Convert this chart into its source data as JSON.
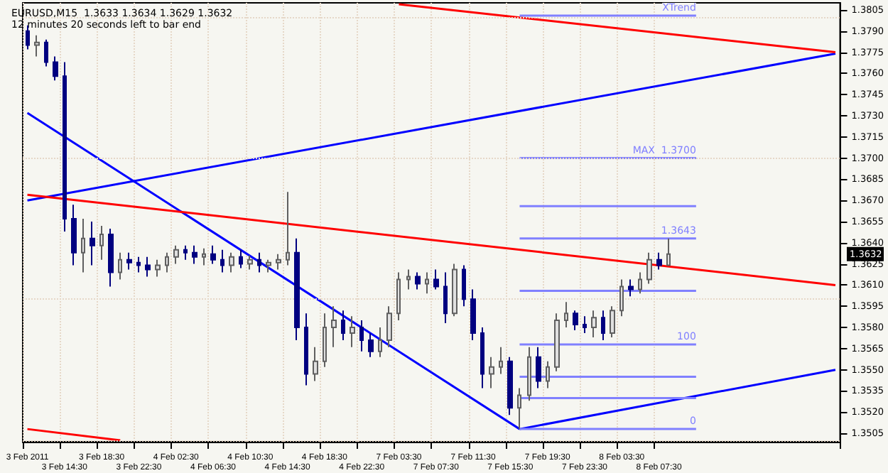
{
  "chart_data": {
    "type": "candlestick",
    "title": "EURUSD,M15  1.3633 1.3634 1.3629 1.3632",
    "subtitle": "12 minutes 20 seconds left to bar end",
    "categories": [
      "3 Feb 2011",
      null,
      null,
      null,
      "3 Feb 14:30",
      null,
      null,
      null,
      "3 Feb 18:30",
      null,
      null,
      null,
      "3 Feb 22:30",
      null,
      null,
      null,
      "4 Feb 02:30",
      null,
      null,
      null,
      "4 Feb 06:30",
      null,
      null,
      null,
      "4 Feb 10:30",
      null,
      null,
      null,
      "4 Feb 14:30",
      null,
      null,
      null,
      "4 Feb 18:30",
      null,
      null,
      null,
      "4 Feb 22:30",
      null,
      null,
      null,
      "7 Feb 03:30",
      null,
      null,
      null,
      "7 Feb 07:30",
      null,
      null,
      null,
      "7 Feb 11:30",
      null,
      null,
      null,
      "7 Feb 15:30",
      null,
      null,
      null,
      "7 Feb 19:30",
      null,
      null,
      null,
      "7 Feb 23:30",
      null,
      null,
      null,
      "8 Feb 03:30",
      null,
      null,
      null,
      "8 Feb 07:30",
      null,
      null,
      null,
      null,
      null,
      null,
      null,
      null,
      null,
      null,
      null,
      null,
      null,
      null,
      null,
      null,
      null,
      null,
      null
    ],
    "ohlc": [
      [
        1.379,
        1.3794,
        1.3777,
        1.378
      ],
      [
        1.378,
        1.3787,
        1.3772,
        1.3782
      ],
      [
        1.3782,
        1.3784,
        1.3765,
        1.3768
      ],
      [
        1.3768,
        1.3772,
        1.3755,
        1.3758
      ],
      [
        1.3758,
        1.3768,
        1.3648,
        1.3657
      ],
      [
        1.3657,
        1.3667,
        1.3624,
        1.3633
      ],
      [
        1.3633,
        1.3657,
        1.3619,
        1.3643
      ],
      [
        1.3643,
        1.3655,
        1.3624,
        1.3638
      ],
      [
        1.3638,
        1.3652,
        1.3628,
        1.3646
      ],
      [
        1.3646,
        1.365,
        1.3609,
        1.3619
      ],
      [
        1.3619,
        1.3633,
        1.3614,
        1.3628
      ],
      [
        1.3628,
        1.3633,
        1.3621,
        1.3626
      ],
      [
        1.3626,
        1.363,
        1.3619,
        1.3624
      ],
      [
        1.3624,
        1.363,
        1.3616,
        1.3621
      ],
      [
        1.3621,
        1.3628,
        1.3616,
        1.3624
      ],
      [
        1.3624,
        1.3633,
        1.3619,
        1.363
      ],
      [
        1.363,
        1.3638,
        1.3625,
        1.3635
      ],
      [
        1.3635,
        1.3638,
        1.3628,
        1.3633
      ],
      [
        1.3633,
        1.3638,
        1.3625,
        1.363
      ],
      [
        1.363,
        1.3636,
        1.3624,
        1.3632
      ],
      [
        1.3632,
        1.3638,
        1.3625,
        1.3628
      ],
      [
        1.3628,
        1.3635,
        1.3619,
        1.3624
      ],
      [
        1.3624,
        1.3633,
        1.3619,
        1.363
      ],
      [
        1.363,
        1.3635,
        1.3622,
        1.3625
      ],
      [
        1.3625,
        1.3631,
        1.3621,
        1.3628
      ],
      [
        1.3628,
        1.3633,
        1.3619,
        1.3624
      ],
      [
        1.3624,
        1.3628,
        1.3619,
        1.3626
      ],
      [
        1.3626,
        1.3632,
        1.3621,
        1.3628
      ],
      [
        1.3628,
        1.3676,
        1.3624,
        1.3633
      ],
      [
        1.3633,
        1.3643,
        1.3571,
        1.358
      ],
      [
        1.358,
        1.359,
        1.3539,
        1.3547
      ],
      [
        1.3547,
        1.3566,
        1.3542,
        1.3556
      ],
      [
        1.3556,
        1.359,
        1.3552,
        1.358
      ],
      [
        1.358,
        1.3595,
        1.3566,
        1.3585
      ],
      [
        1.3585,
        1.3592,
        1.3571,
        1.3576
      ],
      [
        1.3576,
        1.3588,
        1.3566,
        1.358
      ],
      [
        1.358,
        1.3585,
        1.3563,
        1.3571
      ],
      [
        1.3571,
        1.3576,
        1.3559,
        1.3563
      ],
      [
        1.3563,
        1.358,
        1.3559,
        1.3571
      ],
      [
        1.3571,
        1.3595,
        1.3566,
        1.359
      ],
      [
        1.359,
        1.3619,
        1.3585,
        1.3614
      ],
      [
        1.3614,
        1.3621,
        1.3607,
        1.3616
      ],
      [
        1.3616,
        1.3619,
        1.3607,
        1.3611
      ],
      [
        1.3611,
        1.3619,
        1.3604,
        1.3614
      ],
      [
        1.3614,
        1.3621,
        1.3607,
        1.3609
      ],
      [
        1.3609,
        1.3619,
        1.3583,
        1.359
      ],
      [
        1.359,
        1.3625,
        1.3588,
        1.3621
      ],
      [
        1.3621,
        1.3624,
        1.3595,
        1.36
      ],
      [
        1.36,
        1.3607,
        1.3571,
        1.3576
      ],
      [
        1.3576,
        1.358,
        1.3537,
        1.3547
      ],
      [
        1.3547,
        1.3559,
        1.3537,
        1.3552
      ],
      [
        1.3552,
        1.3566,
        1.3547,
        1.3556
      ],
      [
        1.3556,
        1.3559,
        1.3518,
        1.3523
      ],
      [
        1.3523,
        1.3537,
        1.3508,
        1.3532
      ],
      [
        1.3532,
        1.3566,
        1.3528,
        1.3559
      ],
      [
        1.3559,
        1.3566,
        1.3537,
        1.3542
      ],
      [
        1.3542,
        1.3556,
        1.3537,
        1.3552
      ],
      [
        1.3552,
        1.359,
        1.3549,
        1.3585
      ],
      [
        1.3585,
        1.3598,
        1.358,
        1.359
      ],
      [
        1.359,
        1.3592,
        1.3578,
        1.3582
      ],
      [
        1.3582,
        1.3588,
        1.3576,
        1.358
      ],
      [
        1.358,
        1.3592,
        1.3573,
        1.3587
      ],
      [
        1.3587,
        1.3592,
        1.3571,
        1.3576
      ],
      [
        1.3576,
        1.3595,
        1.3573,
        1.3592
      ],
      [
        1.3592,
        1.3614,
        1.3588,
        1.3609
      ],
      [
        1.3609,
        1.3614,
        1.3602,
        1.3607
      ],
      [
        1.3607,
        1.3619,
        1.3604,
        1.3614
      ],
      [
        1.3614,
        1.3633,
        1.3611,
        1.3628
      ],
      [
        1.3628,
        1.3633,
        1.3621,
        1.3624
      ],
      [
        1.3624,
        1.3643,
        1.3624,
        1.3632
      ],
      null,
      null,
      null,
      null,
      null,
      null,
      null,
      null,
      null,
      null,
      null,
      null,
      null,
      null,
      null,
      null,
      null,
      null
    ],
    "series": [
      {
        "type": "line",
        "color": "#0000ff",
        "values": [
          1.3732,
          null,
          null,
          null,
          null,
          null,
          null,
          null,
          null,
          null,
          null,
          null,
          null,
          null,
          null,
          null,
          null,
          null,
          null,
          null,
          null,
          null,
          null,
          null,
          null,
          null,
          null,
          null,
          null,
          null,
          null,
          null,
          null,
          null,
          null,
          null,
          null,
          null,
          null,
          null,
          null,
          null,
          null,
          null,
          null,
          null,
          null,
          null,
          null,
          null,
          null,
          null,
          null,
          1.3508,
          null,
          null,
          null,
          null,
          null,
          null,
          null,
          null,
          null,
          null,
          null,
          null,
          null,
          null,
          null,
          null,
          null,
          null,
          null,
          null,
          null,
          null,
          null,
          null,
          null,
          null,
          null,
          null,
          null,
          null,
          null,
          null,
          null,
          null
        ]
      },
      {
        "type": "line",
        "color": "#0000ff",
        "values": [
          null,
          null,
          null,
          null,
          null,
          null,
          null,
          null,
          null,
          null,
          null,
          null,
          null,
          null,
          null,
          null,
          null,
          null,
          null,
          null,
          null,
          null,
          null,
          null,
          null,
          null,
          null,
          null,
          null,
          null,
          null,
          null,
          null,
          null,
          null,
          null,
          null,
          null,
          null,
          null,
          null,
          null,
          null,
          null,
          null,
          null,
          null,
          null,
          null,
          null,
          null,
          null,
          null,
          1.3508,
          null,
          null,
          null,
          null,
          null,
          null,
          null,
          null,
          null,
          null,
          null,
          null,
          null,
          null,
          null,
          null,
          null,
          null,
          null,
          null,
          null,
          null,
          null,
          null,
          null,
          null,
          null,
          null,
          null,
          null,
          null,
          null,
          null,
          1.355
        ]
      },
      {
        "type": "line",
        "color": "#0000ff",
        "values": [
          1.367,
          null,
          null,
          null,
          null,
          null,
          null,
          null,
          null,
          null,
          null,
          null,
          null,
          null,
          null,
          null,
          null,
          null,
          null,
          null,
          null,
          null,
          null,
          null,
          null,
          null,
          null,
          null,
          null,
          null,
          null,
          null,
          null,
          null,
          null,
          null,
          null,
          null,
          null,
          null,
          null,
          null,
          null,
          null,
          null,
          null,
          null,
          null,
          null,
          null,
          null,
          null,
          null,
          null,
          null,
          null,
          null,
          null,
          null,
          null,
          null,
          null,
          null,
          null,
          null,
          null,
          null,
          null,
          null,
          null,
          null,
          null,
          null,
          null,
          null,
          null,
          null,
          null,
          null,
          null,
          null,
          null,
          null,
          null,
          null,
          null,
          null,
          1.3774
        ]
      },
      {
        "type": "line",
        "color": "#ff0000",
        "values": [
          1.3674,
          null,
          null,
          null,
          null,
          null,
          null,
          null,
          null,
          null,
          null,
          null,
          null,
          null,
          null,
          null,
          null,
          null,
          null,
          null,
          null,
          null,
          null,
          null,
          null,
          null,
          null,
          null,
          null,
          null,
          null,
          null,
          null,
          null,
          null,
          null,
          null,
          null,
          null,
          null,
          null,
          null,
          null,
          null,
          null,
          null,
          null,
          null,
          null,
          null,
          null,
          null,
          null,
          null,
          null,
          null,
          null,
          null,
          null,
          null,
          null,
          null,
          null,
          null,
          null,
          null,
          null,
          null,
          null,
          null,
          null,
          null,
          null,
          null,
          null,
          null,
          null,
          null,
          null,
          null,
          null,
          null,
          null,
          null,
          null,
          null,
          null,
          1.361
        ]
      },
      {
        "type": "line",
        "color": "#ff0000",
        "values": [
          null,
          null,
          null,
          null,
          null,
          null,
          null,
          null,
          null,
          null,
          null,
          null,
          null,
          null,
          null,
          null,
          null,
          null,
          null,
          null,
          null,
          null,
          null,
          null,
          null,
          null,
          null,
          null,
          null,
          null,
          null,
          null,
          null,
          null,
          null,
          null,
          null,
          null,
          null,
          null,
          1.3809,
          null,
          null,
          null,
          null,
          null,
          null,
          null,
          null,
          null,
          null,
          null,
          null,
          null,
          null,
          null,
          null,
          null,
          null,
          null,
          null,
          null,
          null,
          null,
          null,
          null,
          null,
          null,
          null,
          null,
          null,
          null,
          null,
          null,
          null,
          null,
          null,
          null,
          null,
          null,
          null,
          null,
          null,
          null,
          null,
          null,
          null,
          1.3775
        ]
      },
      {
        "type": "line",
        "color": "#ff0000",
        "values": [
          1.3508,
          null,
          null,
          null,
          null,
          null,
          null,
          null,
          null,
          null,
          1.35,
          null,
          null,
          null,
          null,
          null,
          null,
          null,
          null,
          null,
          null,
          null,
          null,
          null,
          null,
          null,
          null,
          null,
          null,
          null,
          null,
          null,
          null,
          null,
          null,
          null,
          null,
          null,
          null,
          null,
          null,
          null,
          null,
          null,
          null,
          null,
          null,
          null,
          null,
          null,
          null,
          null,
          null,
          null,
          null,
          null,
          null,
          null,
          null,
          null,
          null,
          null,
          null,
          null,
          null,
          null,
          null,
          null,
          null,
          null,
          null,
          null,
          null,
          null,
          null,
          null,
          null,
          null,
          null,
          null,
          null,
          null,
          null,
          null,
          null,
          null,
          null,
          null
        ]
      },
      {
        "type": "line",
        "name": "XTrend",
        "color": "#8080ff",
        "values": [
          null,
          null,
          null,
          null,
          null,
          null,
          null,
          null,
          null,
          null,
          null,
          null,
          null,
          null,
          null,
          null,
          null,
          null,
          null,
          null,
          null,
          null,
          null,
          null,
          null,
          null,
          null,
          null,
          null,
          null,
          null,
          null,
          null,
          null,
          null,
          null,
          null,
          null,
          null,
          null,
          null,
          null,
          null,
          null,
          null,
          null,
          null,
          null,
          null,
          null,
          null,
          null,
          null,
          1.3801,
          null,
          null,
          null,
          null,
          null,
          null,
          null,
          null,
          null,
          null,
          null,
          null,
          null,
          null,
          null,
          null,
          null,
          null,
          1.3801,
          null,
          null,
          null,
          null,
          null,
          null,
          null,
          null,
          null,
          null,
          null,
          null,
          null,
          null,
          null
        ]
      },
      {
        "type": "line",
        "name": "MAX  1.3700",
        "color": "#8080ff",
        "values": [
          null,
          null,
          null,
          null,
          null,
          null,
          null,
          null,
          null,
          null,
          null,
          null,
          null,
          null,
          null,
          null,
          null,
          null,
          null,
          null,
          null,
          null,
          null,
          null,
          null,
          null,
          null,
          null,
          null,
          null,
          null,
          null,
          null,
          null,
          null,
          null,
          null,
          null,
          null,
          null,
          null,
          null,
          null,
          null,
          null,
          null,
          null,
          null,
          null,
          null,
          null,
          null,
          null,
          1.37,
          null,
          null,
          null,
          null,
          null,
          null,
          null,
          null,
          null,
          null,
          null,
          null,
          null,
          null,
          null,
          null,
          null,
          null,
          1.37,
          null,
          null,
          null,
          null,
          null,
          null,
          null,
          null,
          null,
          null,
          null,
          null,
          null,
          null,
          null
        ]
      },
      {
        "type": "line",
        "color": "#8080ff",
        "values": [
          null,
          null,
          null,
          null,
          null,
          null,
          null,
          null,
          null,
          null,
          null,
          null,
          null,
          null,
          null,
          null,
          null,
          null,
          null,
          null,
          null,
          null,
          null,
          null,
          null,
          null,
          null,
          null,
          null,
          null,
          null,
          null,
          null,
          null,
          null,
          null,
          null,
          null,
          null,
          null,
          null,
          null,
          null,
          null,
          null,
          null,
          null,
          null,
          null,
          null,
          null,
          null,
          null,
          1.3666,
          null,
          null,
          null,
          null,
          null,
          null,
          null,
          null,
          null,
          null,
          null,
          null,
          null,
          null,
          null,
          null,
          null,
          null,
          1.3666,
          null,
          null,
          null,
          null,
          null,
          null,
          null,
          null,
          null,
          null,
          null,
          null,
          null,
          null,
          null
        ]
      },
      {
        "type": "line",
        "name": "1.3643",
        "color": "#8080ff",
        "values": [
          null,
          null,
          null,
          null,
          null,
          null,
          null,
          null,
          null,
          null,
          null,
          null,
          null,
          null,
          null,
          null,
          null,
          null,
          null,
          null,
          null,
          null,
          null,
          null,
          null,
          null,
          null,
          null,
          null,
          null,
          null,
          null,
          null,
          null,
          null,
          null,
          null,
          null,
          null,
          null,
          null,
          null,
          null,
          null,
          null,
          null,
          null,
          null,
          null,
          null,
          null,
          null,
          null,
          1.3643,
          null,
          null,
          null,
          null,
          null,
          null,
          null,
          null,
          null,
          null,
          null,
          null,
          null,
          null,
          null,
          null,
          null,
          null,
          1.3643,
          null,
          null,
          null,
          null,
          null,
          null,
          null,
          null,
          null,
          null,
          null,
          null,
          null,
          null,
          null
        ]
      },
      {
        "type": "line",
        "color": "#8080ff",
        "values": [
          null,
          null,
          null,
          null,
          null,
          null,
          null,
          null,
          null,
          null,
          null,
          null,
          null,
          null,
          null,
          null,
          null,
          null,
          null,
          null,
          null,
          null,
          null,
          null,
          null,
          null,
          null,
          null,
          null,
          null,
          null,
          null,
          null,
          null,
          null,
          null,
          null,
          null,
          null,
          null,
          null,
          null,
          null,
          null,
          null,
          null,
          null,
          null,
          null,
          null,
          null,
          null,
          null,
          1.3606,
          null,
          null,
          null,
          null,
          null,
          null,
          null,
          null,
          null,
          null,
          null,
          null,
          null,
          null,
          null,
          null,
          null,
          null,
          1.3606,
          null,
          null,
          null,
          null,
          null,
          null,
          null,
          null,
          null,
          null,
          null,
          null,
          null,
          null,
          null
        ]
      },
      {
        "type": "line",
        "name": "100",
        "color": "#8080ff",
        "values": [
          null,
          null,
          null,
          null,
          null,
          null,
          null,
          null,
          null,
          null,
          null,
          null,
          null,
          null,
          null,
          null,
          null,
          null,
          null,
          null,
          null,
          null,
          null,
          null,
          null,
          null,
          null,
          null,
          null,
          null,
          null,
          null,
          null,
          null,
          null,
          null,
          null,
          null,
          null,
          null,
          null,
          null,
          null,
          null,
          null,
          null,
          null,
          null,
          null,
          null,
          null,
          null,
          null,
          1.3568,
          null,
          null,
          null,
          null,
          null,
          null,
          null,
          null,
          null,
          null,
          null,
          null,
          null,
          null,
          null,
          null,
          null,
          null,
          1.3568,
          null,
          null,
          null,
          null,
          null,
          null,
          null,
          null,
          null,
          null,
          null,
          null,
          null,
          null,
          null
        ]
      },
      {
        "type": "line",
        "color": "#8080ff",
        "values": [
          null,
          null,
          null,
          null,
          null,
          null,
          null,
          null,
          null,
          null,
          null,
          null,
          null,
          null,
          null,
          null,
          null,
          null,
          null,
          null,
          null,
          null,
          null,
          null,
          null,
          null,
          null,
          null,
          null,
          null,
          null,
          null,
          null,
          null,
          null,
          null,
          null,
          null,
          null,
          null,
          null,
          null,
          null,
          null,
          null,
          null,
          null,
          null,
          null,
          null,
          null,
          null,
          null,
          1.3545,
          null,
          null,
          null,
          null,
          null,
          null,
          null,
          null,
          null,
          null,
          null,
          null,
          null,
          null,
          null,
          null,
          null,
          null,
          1.3545,
          null,
          null,
          null,
          null,
          null,
          null,
          null,
          null,
          null,
          null,
          null,
          null,
          null,
          null,
          null
        ]
      },
      {
        "type": "line",
        "color": "#8080ff",
        "values": [
          null,
          null,
          null,
          null,
          null,
          null,
          null,
          null,
          null,
          null,
          null,
          null,
          null,
          null,
          null,
          null,
          null,
          null,
          null,
          null,
          null,
          null,
          null,
          null,
          null,
          null,
          null,
          null,
          null,
          null,
          null,
          null,
          null,
          null,
          null,
          null,
          null,
          null,
          null,
          null,
          null,
          null,
          null,
          null,
          null,
          null,
          null,
          null,
          null,
          null,
          null,
          null,
          null,
          1.353,
          null,
          null,
          null,
          null,
          null,
          null,
          null,
          null,
          null,
          null,
          null,
          null,
          null,
          null,
          null,
          null,
          null,
          null,
          1.353,
          null,
          null,
          null,
          null,
          null,
          null,
          null,
          null,
          null,
          null,
          null,
          null,
          null,
          null,
          null
        ]
      },
      {
        "type": "line",
        "name": "0",
        "color": "#8080ff",
        "values": [
          null,
          null,
          null,
          null,
          null,
          null,
          null,
          null,
          null,
          null,
          null,
          null,
          null,
          null,
          null,
          null,
          null,
          null,
          null,
          null,
          null,
          null,
          null,
          null,
          null,
          null,
          null,
          null,
          null,
          null,
          null,
          null,
          null,
          null,
          null,
          null,
          null,
          null,
          null,
          null,
          null,
          null,
          null,
          null,
          null,
          null,
          null,
          null,
          null,
          null,
          null,
          null,
          null,
          1.3508,
          null,
          null,
          null,
          null,
          null,
          null,
          null,
          null,
          null,
          null,
          null,
          null,
          null,
          null,
          null,
          null,
          null,
          null,
          1.3508,
          null,
          null,
          null,
          null,
          null,
          null,
          null,
          null,
          null,
          null,
          null,
          null,
          null,
          null,
          null
        ]
      }
    ],
    "ylim": [
      1.3499,
      1.381
    ],
    "yticks": [
      1.3505,
      {
        "value": 1.352,
        "label": "1.3520"
      },
      1.3535,
      {
        "value": 1.355,
        "label": "1.3550"
      },
      1.3565,
      {
        "value": 1.358,
        "label": "1.3580"
      },
      1.3595,
      {
        "value": 1.361,
        "label": "1.3610"
      },
      1.3625,
      {
        "value": 1.364,
        "label": "1.3640"
      },
      1.3655,
      {
        "value": 1.367,
        "label": "1.3670"
      },
      1.3685,
      {
        "value": 1.37,
        "label": "1.3700"
      },
      1.3715,
      {
        "value": 1.373,
        "label": "1.3730"
      },
      1.3745,
      {
        "value": 1.376,
        "label": "1.3760"
      },
      1.3775,
      {
        "value": 1.379,
        "label": "1.3790"
      },
      1.3805
    ],
    "annotations": [
      "1.3632"
    ],
    "grid": true,
    "legend": false
  }
}
